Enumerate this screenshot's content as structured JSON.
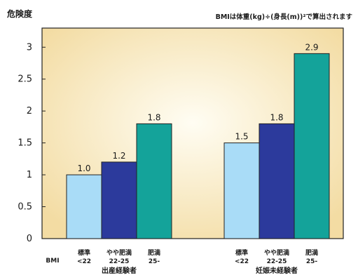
{
  "chart_data": {
    "type": "bar",
    "ylabel": "危険度",
    "note": "BMIは体重(kg)÷(身長(m))²で算出されます",
    "ylim": [
      0,
      3.3
    ],
    "yticks": [
      "0",
      "0.5",
      "1",
      "1.5",
      "2",
      "2.5",
      "3"
    ],
    "bmi_label": "BMI",
    "categories": [
      {
        "name": "標準",
        "range": "<22"
      },
      {
        "name": "やや肥満",
        "range": "22-25"
      },
      {
        "name": "肥満",
        "range": "25-"
      }
    ],
    "groups": [
      {
        "name": "出産経験者",
        "values": [
          1.0,
          1.2,
          1.8
        ],
        "labels": [
          "1.0",
          "1.2",
          "1.8"
        ]
      },
      {
        "name": "妊娠未経験者",
        "values": [
          1.5,
          1.8,
          2.9
        ],
        "labels": [
          "1.5",
          "1.8",
          "2.9"
        ]
      }
    ],
    "colors": {
      "bars": [
        "#a9dcf7",
        "#2c3a9c",
        "#14a39a"
      ],
      "plot_center": "#fffdf3",
      "plot_edge": "#f3dca3",
      "border": "#222222"
    },
    "grid": false
  }
}
